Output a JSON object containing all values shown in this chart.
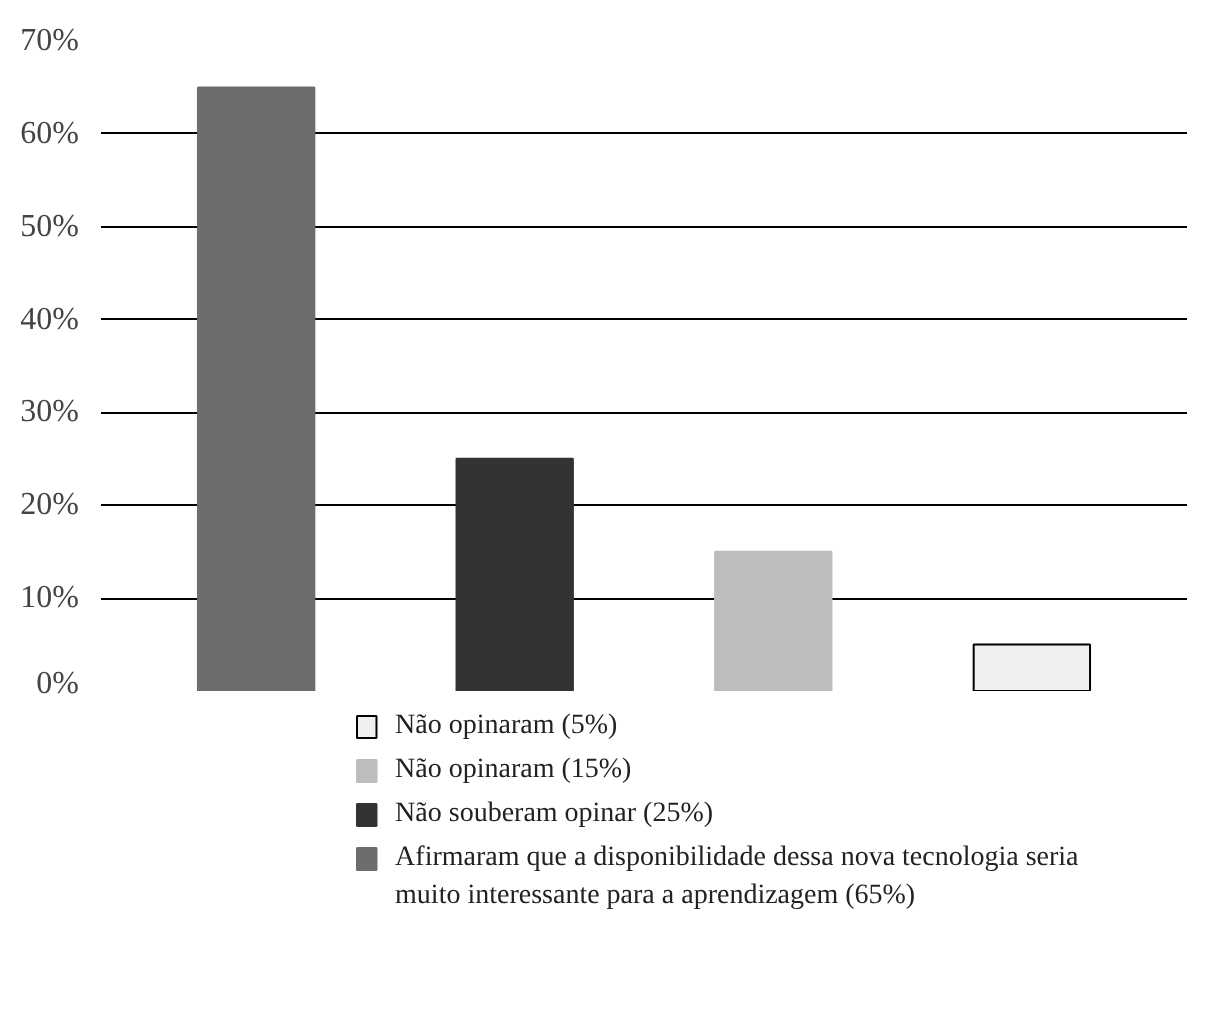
{
  "chart_data": {
    "type": "bar",
    "categories": [
      null,
      null,
      null,
      null
    ],
    "series": [
      {
        "name": "Não opinaram (5%)",
        "color": "#efefef",
        "values": [
          null,
          null,
          null,
          5
        ]
      },
      {
        "name": "Não opinaram (15%)",
        "color": "#bdbdbd",
        "values": [
          null,
          null,
          15,
          null
        ]
      },
      {
        "name": "Não souberam opinar (25%)",
        "color": "#333333",
        "values": [
          null,
          25,
          null,
          null
        ]
      },
      {
        "name": "Afirmaram que a disponibilidade dessa nova tecnologia seria muito interessante para a aprendizagem (65%)",
        "color": "#6d6d6d",
        "values": [
          65,
          null,
          null,
          null
        ]
      }
    ],
    "ylim": [
      0,
      70
    ],
    "yticks": [
      {
        "value": 0,
        "label": "0%"
      },
      {
        "value": 10,
        "label": "10%"
      },
      {
        "value": 20,
        "label": "20%"
      },
      {
        "value": 30,
        "label": "30%"
      },
      {
        "value": 40,
        "label": "40%"
      },
      {
        "value": 50,
        "label": "50%"
      },
      {
        "value": 60,
        "label": "60%"
      },
      {
        "value": 70,
        "label": "70%"
      }
    ],
    "grid": "y",
    "legend": "bottom",
    "tick_labels": "y"
  }
}
